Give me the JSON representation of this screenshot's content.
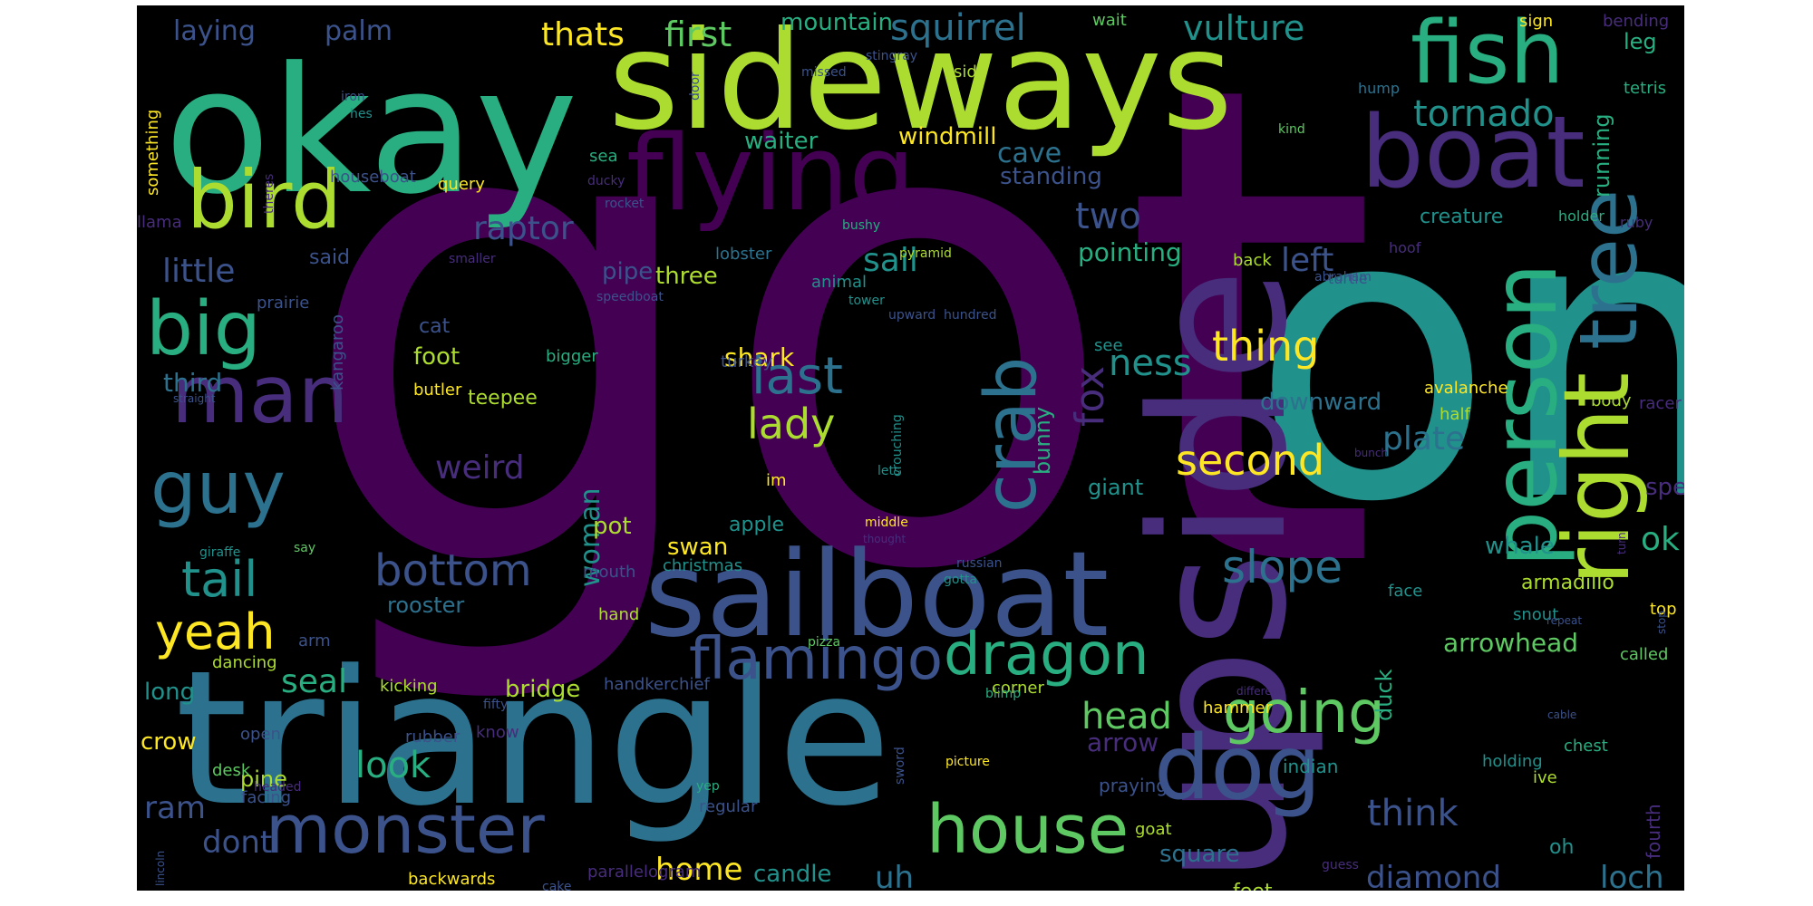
{
  "palette": [
    "#440154",
    "#472d7b",
    "#3b528b",
    "#2c728e",
    "#21918c",
    "#28ae80",
    "#5ec962",
    "#addc30",
    "#fde725"
  ],
  "words": [
    {
      "t": "got",
      "w": 1.0,
      "c": 0
    },
    {
      "t": "one",
      "w": 0.85,
      "c": 4
    },
    {
      "t": "triangle",
      "w": 0.62,
      "c": 3
    },
    {
      "t": "upside",
      "w": 0.55,
      "c": 1
    },
    {
      "t": "okay",
      "w": 0.58,
      "c": 5
    },
    {
      "t": "sideways",
      "w": 0.5,
      "c": 7
    },
    {
      "t": "sailboat",
      "w": 0.45,
      "c": 2
    },
    {
      "t": "flying",
      "w": 0.4,
      "c": 0
    },
    {
      "t": "boat",
      "w": 0.38,
      "c": 1
    },
    {
      "t": "fish",
      "w": 0.32,
      "c": 5
    },
    {
      "t": "right",
      "w": 0.34,
      "c": 7
    },
    {
      "t": "person",
      "w": 0.33,
      "c": 5
    },
    {
      "t": "dog",
      "w": 0.33,
      "c": 2
    },
    {
      "t": "bird",
      "w": 0.3,
      "c": 7
    },
    {
      "t": "man",
      "w": 0.3,
      "c": 1
    },
    {
      "t": "big",
      "w": 0.29,
      "c": 5
    },
    {
      "t": "guy",
      "w": 0.27,
      "c": 3
    },
    {
      "t": "tree",
      "w": 0.3,
      "c": 3
    },
    {
      "t": "crab",
      "w": 0.27,
      "c": 3
    },
    {
      "t": "monster",
      "w": 0.25,
      "c": 2
    },
    {
      "t": "house",
      "w": 0.25,
      "c": 6
    },
    {
      "t": "flamingo",
      "w": 0.22,
      "c": 2
    },
    {
      "t": "dragon",
      "w": 0.22,
      "c": 5
    },
    {
      "t": "going",
      "w": 0.21,
      "c": 6
    },
    {
      "t": "last",
      "w": 0.19,
      "c": 3
    },
    {
      "t": "tail",
      "w": 0.18,
      "c": 4
    },
    {
      "t": "yeah",
      "w": 0.18,
      "c": 8
    },
    {
      "t": "slope",
      "w": 0.17,
      "c": 3
    },
    {
      "t": "bottom",
      "w": 0.16,
      "c": 2
    },
    {
      "t": "thing",
      "w": 0.16,
      "c": 8
    },
    {
      "t": "second",
      "w": 0.16,
      "c": 8
    },
    {
      "t": "lady",
      "w": 0.16,
      "c": 7
    },
    {
      "t": "fox",
      "w": 0.16,
      "c": 1
    },
    {
      "t": "tornado",
      "w": 0.15,
      "c": 4
    },
    {
      "t": "ness",
      "w": 0.15,
      "c": 4
    },
    {
      "t": "two",
      "w": 0.15,
      "c": 2
    },
    {
      "t": "look",
      "w": 0.15,
      "c": 5
    },
    {
      "t": "head",
      "w": 0.15,
      "c": 6
    },
    {
      "t": "think",
      "w": 0.15,
      "c": 2
    },
    {
      "t": "squirrel",
      "w": 0.15,
      "c": 3
    },
    {
      "t": "vulture",
      "w": 0.15,
      "c": 4
    },
    {
      "t": "first",
      "w": 0.14,
      "c": 6
    },
    {
      "t": "thats",
      "w": 0.14,
      "c": 8
    },
    {
      "t": "raptor",
      "w": 0.14,
      "c": 2
    },
    {
      "t": "little",
      "w": 0.14,
      "c": 2
    },
    {
      "t": "sail",
      "w": 0.14,
      "c": 4
    },
    {
      "t": "left",
      "w": 0.14,
      "c": 2
    },
    {
      "t": "weird",
      "w": 0.14,
      "c": 1
    },
    {
      "t": "seal",
      "w": 0.14,
      "c": 5
    },
    {
      "t": "ok",
      "w": 0.14,
      "c": 5
    },
    {
      "t": "plate",
      "w": 0.14,
      "c": 3
    },
    {
      "t": "diamond",
      "w": 0.14,
      "c": 2
    },
    {
      "t": "loch",
      "w": 0.14,
      "c": 3
    },
    {
      "t": "dont",
      "w": 0.14,
      "c": 2
    },
    {
      "t": "ram",
      "w": 0.13,
      "c": 2
    },
    {
      "t": "uh",
      "w": 0.13,
      "c": 3
    },
    {
      "t": "home",
      "w": 0.13,
      "c": 8
    },
    {
      "t": "cave",
      "w": 0.12,
      "c": 3
    },
    {
      "t": "laying",
      "w": 0.12,
      "c": 2
    },
    {
      "t": "palm",
      "w": 0.12,
      "c": 2
    },
    {
      "t": "woman",
      "w": 0.12,
      "c": 4
    },
    {
      "t": "arrowhead",
      "w": 0.11,
      "c": 6
    },
    {
      "t": "arrow",
      "w": 0.11,
      "c": 1
    },
    {
      "t": "pointing",
      "w": 0.11,
      "c": 5
    },
    {
      "t": "third",
      "w": 0.11,
      "c": 3
    },
    {
      "t": "shark",
      "w": 0.11,
      "c": 8
    },
    {
      "t": "mountain",
      "w": 0.1,
      "c": 5
    },
    {
      "t": "waiter",
      "w": 0.1,
      "c": 5
    },
    {
      "t": "windmill",
      "w": 0.1,
      "c": 8
    },
    {
      "t": "standing",
      "w": 0.1,
      "c": 2
    },
    {
      "t": "three",
      "w": 0.1,
      "c": 7
    },
    {
      "t": "pipe",
      "w": 0.1,
      "c": 2
    },
    {
      "t": "foot",
      "w": 0.1,
      "c": 7
    },
    {
      "t": "bridge",
      "w": 0.1,
      "c": 7
    },
    {
      "t": "pot",
      "w": 0.1,
      "c": 7
    },
    {
      "t": "swan",
      "w": 0.1,
      "c": 8
    },
    {
      "t": "whale",
      "w": 0.1,
      "c": 4
    },
    {
      "t": "speed",
      "w": 0.1,
      "c": 1
    },
    {
      "t": "downward",
      "w": 0.1,
      "c": 3
    },
    {
      "t": "square",
      "w": 0.1,
      "c": 3
    },
    {
      "t": "candle",
      "w": 0.1,
      "c": 4
    },
    {
      "t": "crow",
      "w": 0.1,
      "c": 8
    },
    {
      "t": "long",
      "w": 0.1,
      "c": 4
    },
    {
      "t": "pine",
      "w": 0.09,
      "c": 7
    },
    {
      "t": "bunny",
      "w": 0.09,
      "c": 5
    },
    {
      "t": "duck",
      "w": 0.09,
      "c": 5
    },
    {
      "t": "giant",
      "w": 0.09,
      "c": 4
    },
    {
      "t": "rooster",
      "w": 0.09,
      "c": 3
    },
    {
      "t": "leg",
      "w": 0.09,
      "c": 5
    },
    {
      "t": "running",
      "w": 0.09,
      "c": 5
    },
    {
      "t": "creature",
      "w": 0.08,
      "c": 4
    },
    {
      "t": "apple",
      "w": 0.08,
      "c": 4
    },
    {
      "t": "armadillo",
      "w": 0.08,
      "c": 7
    },
    {
      "t": "teepee",
      "w": 0.08,
      "c": 7
    },
    {
      "t": "said",
      "w": 0.08,
      "c": 2
    },
    {
      "t": "cat",
      "w": 0.08,
      "c": 2
    },
    {
      "t": "oh",
      "w": 0.08,
      "c": 4
    },
    {
      "t": "feet",
      "w": 0.08,
      "c": 7
    },
    {
      "t": "fourth",
      "w": 0.08,
      "c": 1
    },
    {
      "t": "praying",
      "w": 0.08,
      "c": 2
    },
    {
      "t": "indian",
      "w": 0.08,
      "c": 4
    },
    {
      "t": "face",
      "w": 0.07,
      "c": 4
    },
    {
      "t": "chest",
      "w": 0.07,
      "c": 5
    },
    {
      "t": "holding",
      "w": 0.07,
      "c": 4
    },
    {
      "t": "handkerchief",
      "w": 0.07,
      "c": 2
    },
    {
      "t": "kicking",
      "w": 0.07,
      "c": 7
    },
    {
      "t": "something",
      "w": 0.07,
      "c": 8
    },
    {
      "t": "bigger",
      "w": 0.07,
      "c": 5
    },
    {
      "t": "turkey",
      "w": 0.07,
      "c": 2
    },
    {
      "t": "animal",
      "w": 0.07,
      "c": 4
    },
    {
      "t": "lobster",
      "w": 0.07,
      "c": 3
    },
    {
      "t": "avalanche",
      "w": 0.07,
      "c": 8
    },
    {
      "t": "half",
      "w": 0.07,
      "c": 7
    },
    {
      "t": "body",
      "w": 0.07,
      "c": 7
    },
    {
      "t": "see",
      "w": 0.07,
      "c": 4
    },
    {
      "t": "im",
      "w": 0.06,
      "c": 8
    },
    {
      "t": "back",
      "w": 0.06,
      "c": 7
    },
    {
      "t": "sign",
      "w": 0.06,
      "c": 8
    },
    {
      "t": "bending",
      "w": 0.06,
      "c": 1
    },
    {
      "t": "side",
      "w": 0.06,
      "c": 7
    },
    {
      "t": "wait",
      "w": 0.06,
      "c": 6
    },
    {
      "t": "tetris",
      "w": 0.06,
      "c": 5
    },
    {
      "t": "sea",
      "w": 0.06,
      "c": 5
    },
    {
      "t": "houseboat",
      "w": 0.06,
      "c": 2
    },
    {
      "t": "query",
      "w": 0.06,
      "c": 8
    },
    {
      "t": "llama",
      "w": 0.06,
      "c": 1
    },
    {
      "t": "prairie",
      "w": 0.06,
      "c": 2
    },
    {
      "t": "kangaroo",
      "w": 0.06,
      "c": 2
    },
    {
      "t": "butler",
      "w": 0.06,
      "c": 8
    },
    {
      "t": "christmas",
      "w": 0.06,
      "c": 4
    },
    {
      "t": "mouth",
      "w": 0.06,
      "c": 2
    },
    {
      "t": "hand",
      "w": 0.06,
      "c": 7
    },
    {
      "t": "dancing",
      "w": 0.06,
      "c": 7
    },
    {
      "t": "arm",
      "w": 0.06,
      "c": 2
    },
    {
      "t": "open",
      "w": 0.06,
      "c": 2
    },
    {
      "t": "rubber",
      "w": 0.06,
      "c": 2
    },
    {
      "t": "know",
      "w": 0.06,
      "c": 1
    },
    {
      "t": "desk",
      "w": 0.06,
      "c": 6
    },
    {
      "t": "facing",
      "w": 0.06,
      "c": 2
    },
    {
      "t": "regular",
      "w": 0.06,
      "c": 2
    },
    {
      "t": "backwards",
      "w": 0.06,
      "c": 8
    },
    {
      "t": "parallelogram",
      "w": 0.06,
      "c": 1
    },
    {
      "t": "corner",
      "w": 0.06,
      "c": 7
    },
    {
      "t": "hammer",
      "w": 0.06,
      "c": 8
    },
    {
      "t": "goat",
      "w": 0.06,
      "c": 7
    },
    {
      "t": "ive",
      "w": 0.06,
      "c": 7
    },
    {
      "t": "called",
      "w": 0.06,
      "c": 6
    },
    {
      "t": "snout",
      "w": 0.06,
      "c": 4
    },
    {
      "t": "top",
      "w": 0.06,
      "c": 8
    },
    {
      "t": "racer",
      "w": 0.06,
      "c": 1
    },
    {
      "t": "ruby",
      "w": 0.05,
      "c": 1
    },
    {
      "t": "holder",
      "w": 0.05,
      "c": 5
    },
    {
      "t": "hump",
      "w": 0.05,
      "c": 3
    },
    {
      "t": "hoof",
      "w": 0.05,
      "c": 1
    },
    {
      "t": "turtle",
      "w": 0.05,
      "c": 2
    },
    {
      "t": "abraham",
      "w": 0.05,
      "c": 2
    },
    {
      "t": "hundred",
      "w": 0.05,
      "c": 2
    },
    {
      "t": "upward",
      "w": 0.05,
      "c": 2
    },
    {
      "t": "tower",
      "w": 0.05,
      "c": 4
    },
    {
      "t": "pyramid",
      "w": 0.05,
      "c": 7
    },
    {
      "t": "bushy",
      "w": 0.05,
      "c": 5
    },
    {
      "t": "speedboat",
      "w": 0.05,
      "c": 2
    },
    {
      "t": "rocket",
      "w": 0.05,
      "c": 2
    },
    {
      "t": "ducky",
      "w": 0.05,
      "c": 1
    },
    {
      "t": "smaller",
      "w": 0.05,
      "c": 1
    },
    {
      "t": "stingray",
      "w": 0.05,
      "c": 2
    },
    {
      "t": "missed",
      "w": 0.05,
      "c": 2
    },
    {
      "t": "door",
      "w": 0.05,
      "c": 2
    },
    {
      "t": "iron",
      "w": 0.05,
      "c": 2
    },
    {
      "t": "hes",
      "w": 0.05,
      "c": 4
    },
    {
      "t": "theres",
      "w": 0.05,
      "c": 1
    },
    {
      "t": "kind",
      "w": 0.05,
      "c": 6
    },
    {
      "t": "crouching",
      "w": 0.05,
      "c": 4
    },
    {
      "t": "lets",
      "w": 0.05,
      "c": 4
    },
    {
      "t": "gotta",
      "w": 0.05,
      "c": 4
    },
    {
      "t": "middle",
      "w": 0.05,
      "c": 8
    },
    {
      "t": "thought",
      "w": 0.05,
      "c": 1
    },
    {
      "t": "say",
      "w": 0.05,
      "c": 6
    },
    {
      "t": "giraffe",
      "w": 0.05,
      "c": 4
    },
    {
      "t": "russian",
      "w": 0.05,
      "c": 2
    },
    {
      "t": "pizza",
      "w": 0.05,
      "c": 6
    },
    {
      "t": "blimp",
      "w": 0.05,
      "c": 5
    },
    {
      "t": "different",
      "w": 0.05,
      "c": 1
    },
    {
      "t": "fifty",
      "w": 0.05,
      "c": 2
    },
    {
      "t": "headed",
      "w": 0.05,
      "c": 1
    },
    {
      "t": "yep",
      "w": 0.05,
      "c": 5
    },
    {
      "t": "sword",
      "w": 0.05,
      "c": 2
    },
    {
      "t": "picture",
      "w": 0.05,
      "c": 8
    },
    {
      "t": "guess",
      "w": 0.05,
      "c": 1
    },
    {
      "t": "cake",
      "w": 0.05,
      "c": 2
    },
    {
      "t": "lincoln",
      "w": 0.05,
      "c": 2
    },
    {
      "t": "straight",
      "w": 0.05,
      "c": 2
    },
    {
      "t": "bunch",
      "w": 0.05,
      "c": 1
    },
    {
      "t": "turn",
      "w": 0.05,
      "c": 1
    },
    {
      "t": "repeat",
      "w": 0.05,
      "c": 2
    },
    {
      "t": "stop",
      "w": 0.05,
      "c": 2
    },
    {
      "t": "cable",
      "w": 0.05,
      "c": 2
    }
  ]
}
